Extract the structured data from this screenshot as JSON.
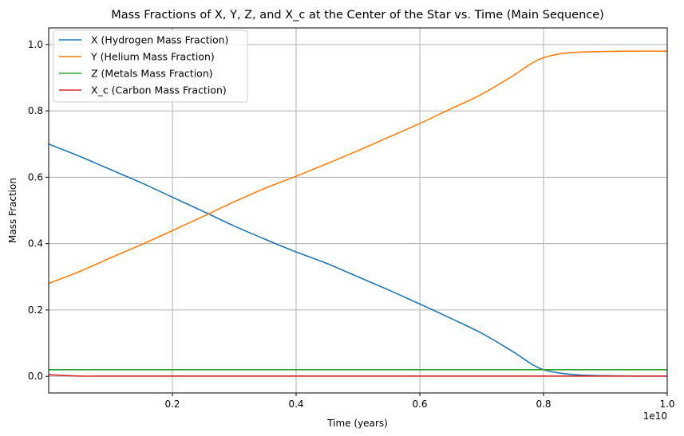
{
  "chart_data": {
    "type": "line",
    "title": "Mass Fractions of X, Y, Z, and X_c at the Center of the Star vs. Time (Main Sequence)",
    "xlabel": "Time (years)",
    "ylabel": "Mass Fraction",
    "x_offset_label": "1e10",
    "xlim": [
      0.0,
      1.0
    ],
    "ylim": [
      -0.05,
      1.05
    ],
    "x_ticks": [
      0.2,
      0.4,
      0.6,
      0.8,
      1.0
    ],
    "x_tick_labels": [
      "0.2",
      "0.4",
      "0.6",
      "0.8",
      "1.0"
    ],
    "y_ticks": [
      0.0,
      0.2,
      0.4,
      0.6,
      0.8,
      1.0
    ],
    "y_tick_labels": [
      "0.0",
      "0.2",
      "0.4",
      "0.6",
      "0.8",
      "1.0"
    ],
    "grid": true,
    "legend_position": "top-left",
    "x": [
      0.0,
      0.05,
      0.1,
      0.15,
      0.2,
      0.25,
      0.3,
      0.35,
      0.4,
      0.45,
      0.5,
      0.55,
      0.6,
      0.65,
      0.7,
      0.75,
      0.78,
      0.8,
      0.83,
      0.86,
      0.9,
      0.95,
      1.0
    ],
    "series": [
      {
        "name": "X (Hydrogen Mass Fraction)",
        "color": "#1f77b4",
        "values": [
          0.7,
          0.663,
          0.623,
          0.583,
          0.54,
          0.497,
          0.453,
          0.413,
          0.375,
          0.34,
          0.3,
          0.26,
          0.218,
          0.175,
          0.13,
          0.075,
          0.038,
          0.02,
          0.009,
          0.004,
          0.002,
          0.001,
          0.001
        ]
      },
      {
        "name": "Y (Helium Mass Fraction)",
        "color": "#ff7f0e",
        "values": [
          0.28,
          0.316,
          0.357,
          0.397,
          0.439,
          0.482,
          0.526,
          0.567,
          0.603,
          0.641,
          0.68,
          0.721,
          0.762,
          0.806,
          0.85,
          0.905,
          0.942,
          0.96,
          0.973,
          0.977,
          0.979,
          0.98,
          0.98
        ]
      },
      {
        "name": "Z (Metals Mass Fraction)",
        "color": "#2ca02c",
        "values": [
          0.02,
          0.02,
          0.02,
          0.02,
          0.02,
          0.02,
          0.02,
          0.02,
          0.02,
          0.02,
          0.02,
          0.02,
          0.02,
          0.02,
          0.02,
          0.02,
          0.02,
          0.02,
          0.02,
          0.02,
          0.02,
          0.02,
          0.02
        ]
      },
      {
        "name": "X_c (Carbon Mass Fraction)",
        "color": "#d62728",
        "values": [
          0.005,
          0.001,
          0.001,
          0.001,
          0.001,
          0.001,
          0.001,
          0.001,
          0.001,
          0.001,
          0.001,
          0.001,
          0.001,
          0.001,
          0.001,
          0.001,
          0.001,
          0.001,
          0.001,
          0.001,
          0.001,
          0.001,
          0.001
        ]
      }
    ]
  }
}
